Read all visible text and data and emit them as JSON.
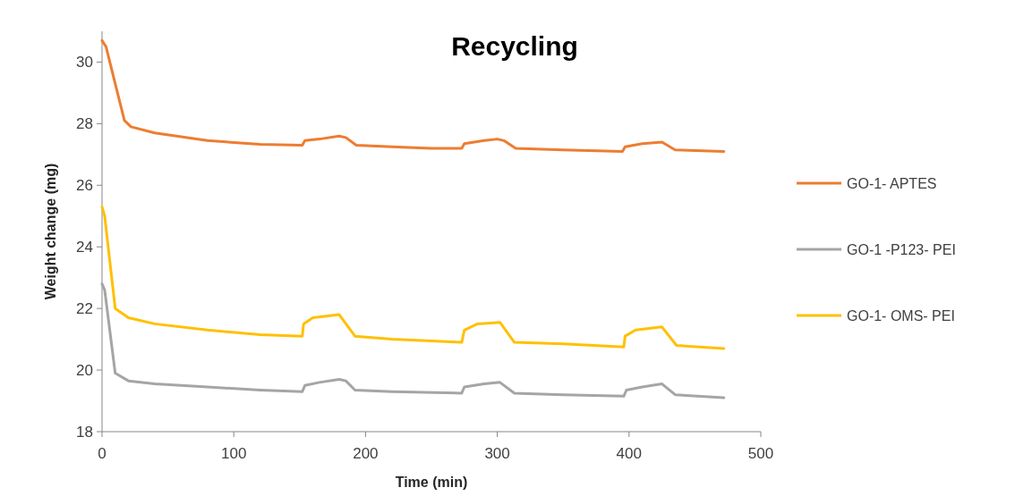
{
  "chart_data": {
    "type": "line",
    "title": "Recycling",
    "xlabel": "Time (min)",
    "ylabel": "Weight change  (mg)",
    "xlim": [
      0,
      500
    ],
    "xticks": [
      0,
      100,
      200,
      300,
      400,
      500
    ],
    "ylim": [
      18,
      31
    ],
    "yticks": [
      18,
      20,
      22,
      24,
      26,
      28,
      30
    ],
    "grid": false,
    "legend": "right",
    "marker": "none",
    "line_style": "solid",
    "series": [
      {
        "name": "GO-1- APTES",
        "color": "#ed7d31",
        "x": [
          0,
          3,
          10,
          17,
          22,
          40,
          80,
          120,
          152,
          154,
          165,
          180,
          185,
          193,
          220,
          250,
          273,
          275,
          290,
          300,
          305,
          314,
          350,
          395,
          397,
          410,
          425,
          435,
          472
        ],
        "values": [
          30.7,
          30.5,
          29.3,
          28.1,
          27.9,
          27.7,
          27.45,
          27.33,
          27.3,
          27.45,
          27.5,
          27.6,
          27.55,
          27.3,
          27.25,
          27.2,
          27.2,
          27.35,
          27.45,
          27.5,
          27.45,
          27.2,
          27.15,
          27.1,
          27.25,
          27.35,
          27.4,
          27.15,
          27.1
        ]
      },
      {
        "name": "GO-1 -P123- PEI",
        "color": "#a5a5a5",
        "x": [
          0,
          2,
          10,
          20,
          40,
          80,
          120,
          152,
          154,
          165,
          180,
          185,
          192,
          220,
          273,
          275,
          290,
          302,
          313,
          350,
          396,
          398,
          410,
          425,
          435,
          472
        ],
        "values": [
          22.8,
          22.6,
          19.9,
          19.65,
          19.55,
          19.45,
          19.35,
          19.3,
          19.5,
          19.6,
          19.7,
          19.65,
          19.35,
          19.3,
          19.25,
          19.45,
          19.55,
          19.6,
          19.25,
          19.2,
          19.15,
          19.35,
          19.45,
          19.55,
          19.2,
          19.1
        ]
      },
      {
        "name": "GO-1- OMS- PEI",
        "color": "#ffc000",
        "x": [
          0,
          2,
          10,
          20,
          40,
          80,
          120,
          152,
          153,
          160,
          180,
          192,
          220,
          273,
          275,
          285,
          302,
          313,
          350,
          396,
          397,
          405,
          425,
          436,
          472
        ],
        "values": [
          25.3,
          25.0,
          22.0,
          21.7,
          21.5,
          21.3,
          21.15,
          21.1,
          21.5,
          21.7,
          21.8,
          21.1,
          21.0,
          20.9,
          21.3,
          21.5,
          21.55,
          20.9,
          20.85,
          20.75,
          21.1,
          21.3,
          21.4,
          20.8,
          20.7
        ]
      }
    ]
  }
}
